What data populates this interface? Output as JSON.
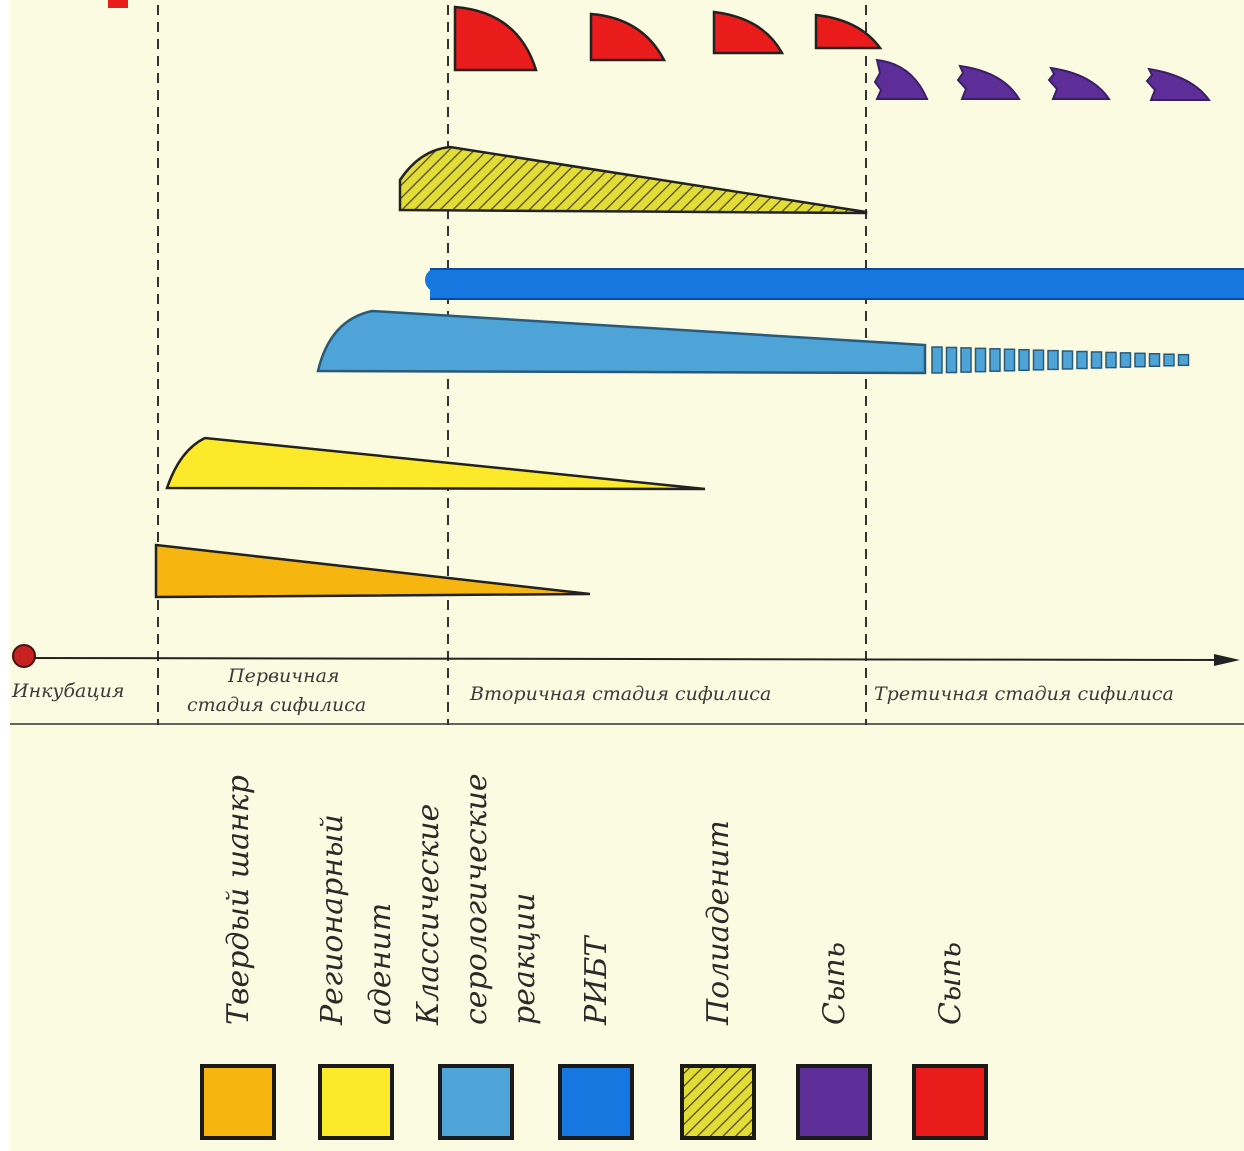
{
  "stages": {
    "incubation": "Инкубация",
    "primary_line1": "Первичная",
    "primary_line2": "стадия сифилиса",
    "secondary": "Вторичная стадия сифилиса",
    "tertiary": "Третичная стадия сифилиса"
  },
  "legend": [
    {
      "lines": [
        "Твердый шанкр"
      ],
      "color": "#f6b60f",
      "pattern": "solid"
    },
    {
      "lines": [
        "Регионарный",
        "аденит"
      ],
      "color": "#fbe92a",
      "pattern": "solid"
    },
    {
      "lines": [
        "Классические",
        "серологические",
        "реакции"
      ],
      "color": "#4ea3d7",
      "pattern": "solid"
    },
    {
      "lines": [
        "РИБТ"
      ],
      "color": "#1777e0",
      "pattern": "solid"
    },
    {
      "lines": [
        "Полиаденит"
      ],
      "color": "#e2dd36",
      "pattern": "hatched"
    },
    {
      "lines": [
        "Сыпь"
      ],
      "color": "#5d2d98",
      "pattern": "solid"
    },
    {
      "lines": [
        "Сыпь"
      ],
      "color": "#ea1b1b",
      "pattern": "solid"
    }
  ],
  "colors": {
    "background": "#fbfbe1",
    "tvyordyi_shankr": "#f6b60f",
    "regionarnyi_adenit": "#fbe92a",
    "serology": "#4ea3d7",
    "ribt": "#1777e0",
    "poliadenit": "#e2dd36",
    "rash_purple": "#5d2d98",
    "rash_red": "#ea1b1b"
  }
}
